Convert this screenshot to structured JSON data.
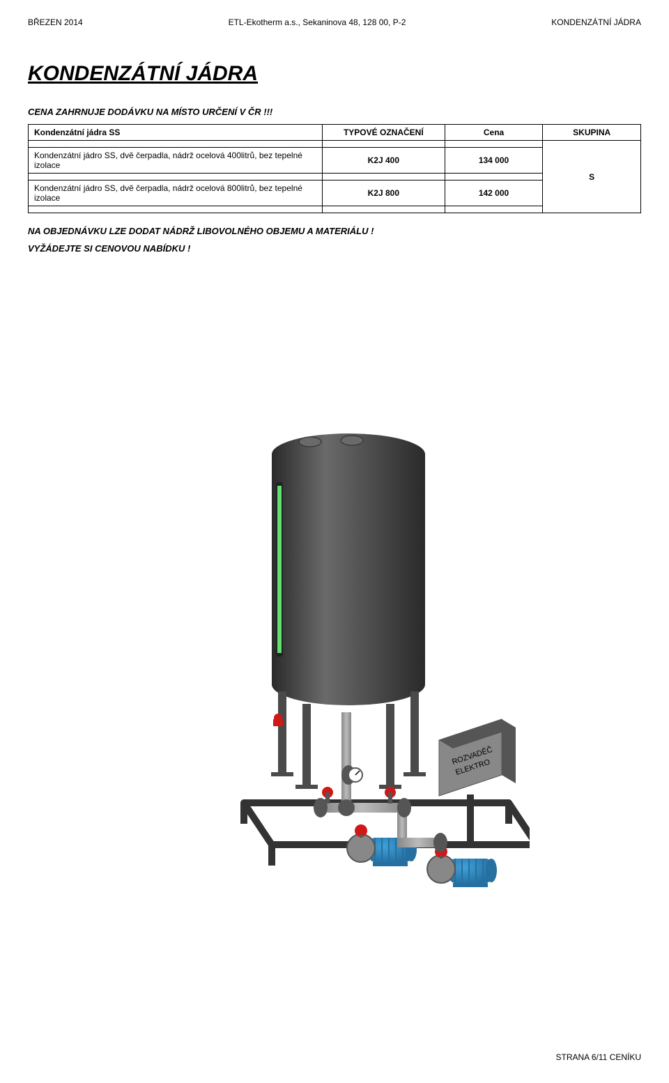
{
  "header": {
    "left": "BŘEZEN 2014",
    "center": "ETL-Ekotherm a.s., Sekaninova 48, 128 00, P-2",
    "right": "KONDENZÁTNÍ JÁDRA"
  },
  "title": "KONDENZÁTNÍ JÁDRA",
  "subtitle": "CENA ZAHRNUJE DODÁVKU NA MÍSTO URČENÍ V ČR !!!",
  "table": {
    "headers": {
      "desc": "Kondenzátní jádra SS",
      "type": "TYPOVÉ OZNAČENÍ",
      "price": "Cena",
      "group": "SKUPINA"
    },
    "rows": [
      {
        "desc": "Kondenzátní jádro SS, dvě čerpadla, nádrž ocelová 400litrů, bez tepelné izolace",
        "type": "K2J 400",
        "price": "134 000"
      },
      {
        "desc": "Kondenzátní jádro SS, dvě čerpadla, nádrž ocelová 800litrů, bez tepelné izolace",
        "type": "K2J 800",
        "price": "142 000"
      }
    ],
    "group": "S"
  },
  "notes": {
    "line1": "NA OBJEDNÁVKU LZE DODAT NÁDRŽ LIBOVOLNÉHO OBJEMU A MATERIÁLU !",
    "line2": "VYŽÁDEJTE SI CENOVOU NABÍDKU !"
  },
  "illustration": {
    "tank_color": "#4a4a4a",
    "tank_highlight": "#6a6a6a",
    "tank_shadow": "#2a2a2a",
    "base_color": "#333333",
    "pump_body": "#3fa0d8",
    "pump_shadow": "#2570a0",
    "pipe_color": "#888888",
    "pipe_highlight": "#bbbbbb",
    "valve_color": "#d01818",
    "panel_color": "#888888",
    "panel_shadow": "#555555",
    "sight_glass": "#5fe06f",
    "flange_color": "#555555",
    "label_text1": "ROZVADĚČ",
    "label_text2": "ELEKTRO"
  },
  "footer": "STRANA 6/11 CENÍKU"
}
